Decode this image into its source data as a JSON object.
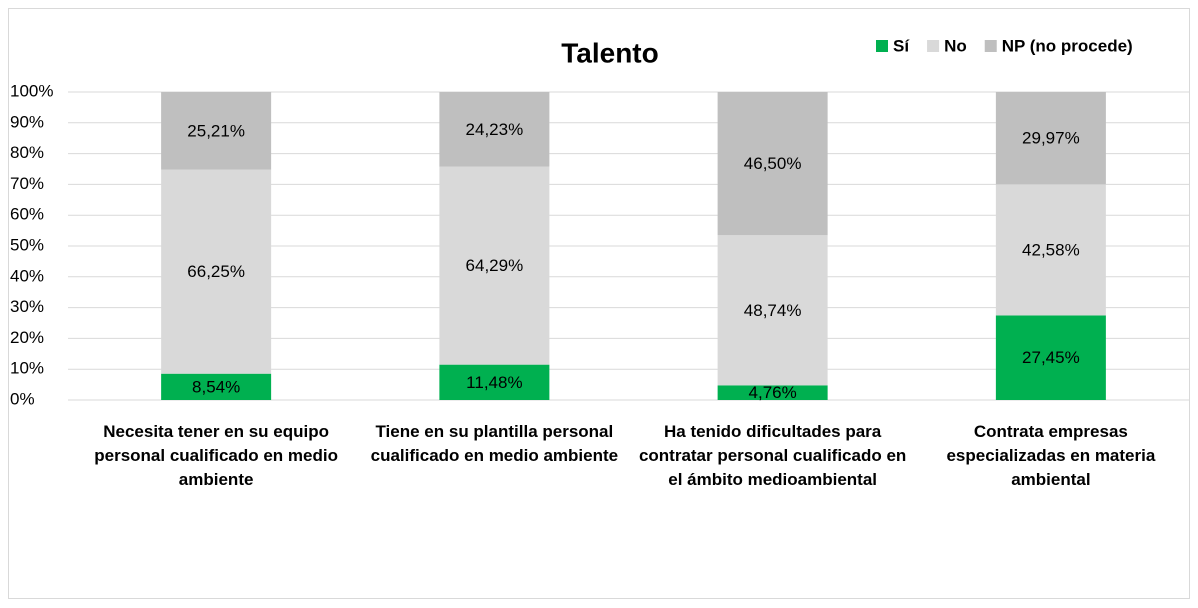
{
  "chart_data": {
    "type": "stacked_bar",
    "title": "Talento",
    "categories": [
      "Necesita tener en su equipo personal cualificado en medio ambiente",
      "Tiene en su plantilla personal cualificado en medio ambiente",
      "Ha tenido dificultades para contratar personal cualificado en el ámbito medioambiental",
      "Contrata empresas especializadas en materia ambiental"
    ],
    "series": [
      {
        "name": "Sí",
        "color": "#00b050",
        "values": [
          8.54,
          11.48,
          4.76,
          27.45
        ],
        "value_labels": [
          "8,54%",
          "11,48%",
          "4,76%",
          "27,45%"
        ]
      },
      {
        "name": "No",
        "color": "#d9d9d9",
        "values": [
          66.25,
          64.29,
          48.74,
          42.58
        ],
        "value_labels": [
          "66,25%",
          "64,29%",
          "48,74%",
          "42,58%"
        ]
      },
      {
        "name": "NP (no procede)",
        "color": "#bfbfbf",
        "values": [
          25.21,
          24.23,
          46.5,
          29.97
        ],
        "value_labels": [
          "25,21%",
          "24,23%",
          "46,50%",
          "29,97%"
        ]
      }
    ],
    "ylim": [
      0,
      100
    ],
    "yticks": [
      {
        "value": 0,
        "label": "0%"
      },
      {
        "value": 10,
        "label": "10%"
      },
      {
        "value": 20,
        "label": "20%"
      },
      {
        "value": 30,
        "label": "30%"
      },
      {
        "value": 40,
        "label": "40%"
      },
      {
        "value": 50,
        "label": "50%"
      },
      {
        "value": 60,
        "label": "60%"
      },
      {
        "value": 70,
        "label": "70%"
      },
      {
        "value": 80,
        "label": "80%"
      },
      {
        "value": 90,
        "label": "90%"
      },
      {
        "value": 100,
        "label": "100%"
      }
    ],
    "grid": true,
    "legend": "top-right"
  }
}
